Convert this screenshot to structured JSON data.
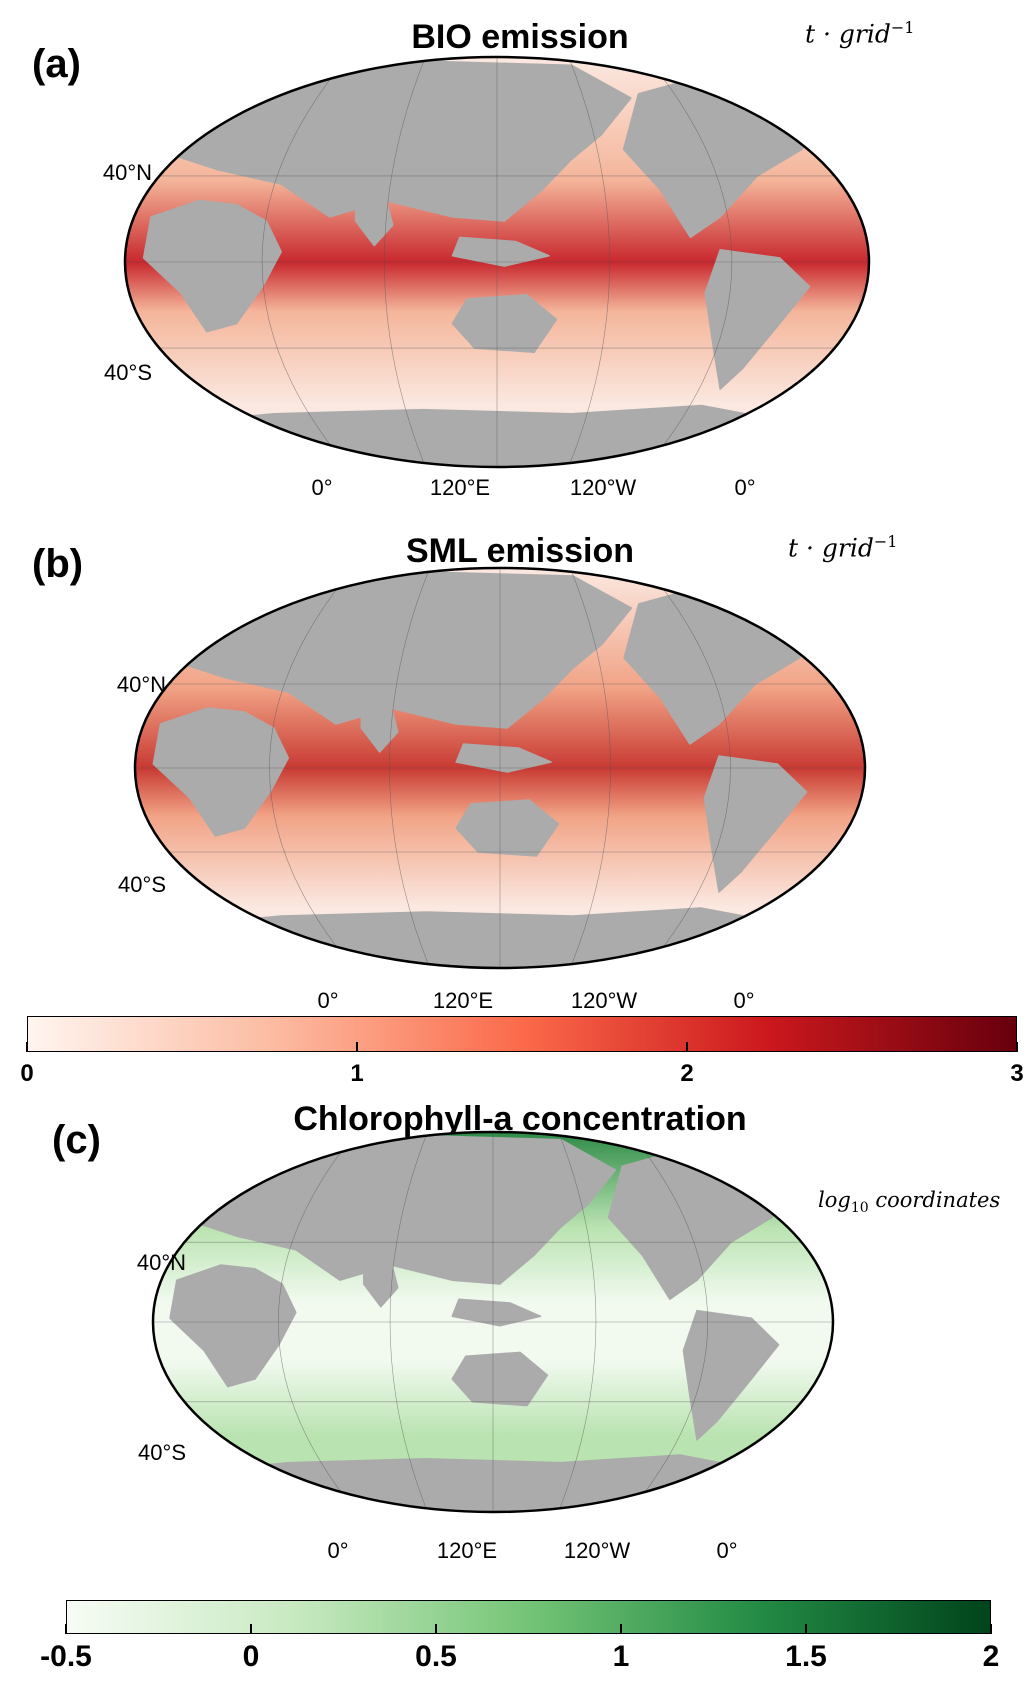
{
  "panels": [
    {
      "letter": "(a)",
      "title": "BIO emission",
      "unit_base": "t · grid",
      "unit_sup": "−1",
      "lat_labels": [
        "40°N",
        "40°S"
      ],
      "lon_labels": [
        "0°",
        "120°E",
        "120°W",
        "0°"
      ],
      "ocean_colors": {
        "low": "#fbe9e1",
        "mid": "#f4b59a",
        "high": "#c8282e"
      },
      "land_color": "#ababab"
    },
    {
      "letter": "(b)",
      "title": "SML emission",
      "unit_base": "t · grid",
      "unit_sup": "−1",
      "lat_labels": [
        "40°N",
        "40°S"
      ],
      "lon_labels": [
        "0°",
        "120°E",
        "120°W",
        "0°"
      ],
      "ocean_colors": {
        "low": "#fbe9e1",
        "mid": "#f1a386",
        "high": "#c83a33"
      },
      "land_color": "#ababab"
    },
    {
      "letter": "(c)",
      "title": "Chlorophyll-a concentration",
      "unit_base": "log",
      "unit_sub": "10",
      "unit_rest": " coordinates",
      "lat_labels": [
        "40°N",
        "40°S"
      ],
      "lon_labels": [
        "0°",
        "120°E",
        "120°W",
        "0°"
      ],
      "ocean_colors": {
        "low": "#f2faf0",
        "mid": "#b9e3b0",
        "high": "#2e8b48"
      },
      "land_color": "#ababab"
    }
  ],
  "colorbars": [
    {
      "ticks": [
        "0",
        "1",
        "2",
        "3"
      ],
      "tick_values": [
        0,
        1,
        2,
        3
      ],
      "min": 0,
      "max": 3,
      "colors": [
        "#fff5f0",
        "#fcbba1",
        "#fb6a4a",
        "#cb181d",
        "#67000d"
      ]
    },
    {
      "ticks": [
        "-0.5",
        "0",
        "0.5",
        "1",
        "1.5",
        "2"
      ],
      "tick_values": [
        -0.5,
        0,
        0.5,
        1,
        1.5,
        2
      ],
      "min": -0.5,
      "max": 2,
      "colors": [
        "#f7fcf5",
        "#c7e9c0",
        "#74c476",
        "#238b45",
        "#00441b"
      ]
    }
  ]
}
